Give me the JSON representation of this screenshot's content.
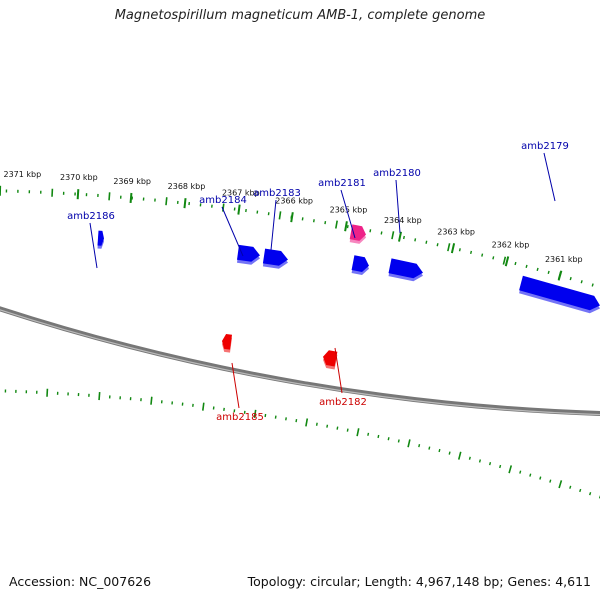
{
  "title": "Magnetospirillum magneticum AMB-1, complete genome",
  "footer": {
    "accession_text": "Accession: NC_007626",
    "topology_text": "Topology: circular; Length: 4,967,148 bp; Genes: 4,611"
  },
  "colors": {
    "forward_gene": "#0000ee",
    "reverse_gene": "#ee0000",
    "other_gene": "#ee2288",
    "track_ticks": "#118811",
    "backbone": "#777777",
    "forward_label": "#0000aa",
    "reverse_label": "#cc0000"
  },
  "scale_ticks": [
    {
      "label": "2371 kbp"
    },
    {
      "label": "2370 kbp"
    },
    {
      "label": "2369 kbp"
    },
    {
      "label": "2368 kbp"
    },
    {
      "label": "2367 kbp"
    },
    {
      "label": "2366 kbp"
    },
    {
      "label": "2365 kbp"
    },
    {
      "label": "2364 kbp"
    },
    {
      "label": "2363 kbp"
    },
    {
      "label": "2362 kbp"
    },
    {
      "label": "2361 kbp"
    }
  ],
  "genes": [
    {
      "name": "amb2186",
      "strand": "forward"
    },
    {
      "name": "amb2185",
      "strand": "reverse"
    },
    {
      "name": "amb2184",
      "strand": "forward"
    },
    {
      "name": "amb2183",
      "strand": "forward"
    },
    {
      "name": "amb2182",
      "strand": "reverse"
    },
    {
      "name": "amb2181",
      "strand": "other"
    },
    {
      "name": "amb2180",
      "strand": "forward"
    },
    {
      "name": "amb2179",
      "strand": "forward"
    }
  ]
}
